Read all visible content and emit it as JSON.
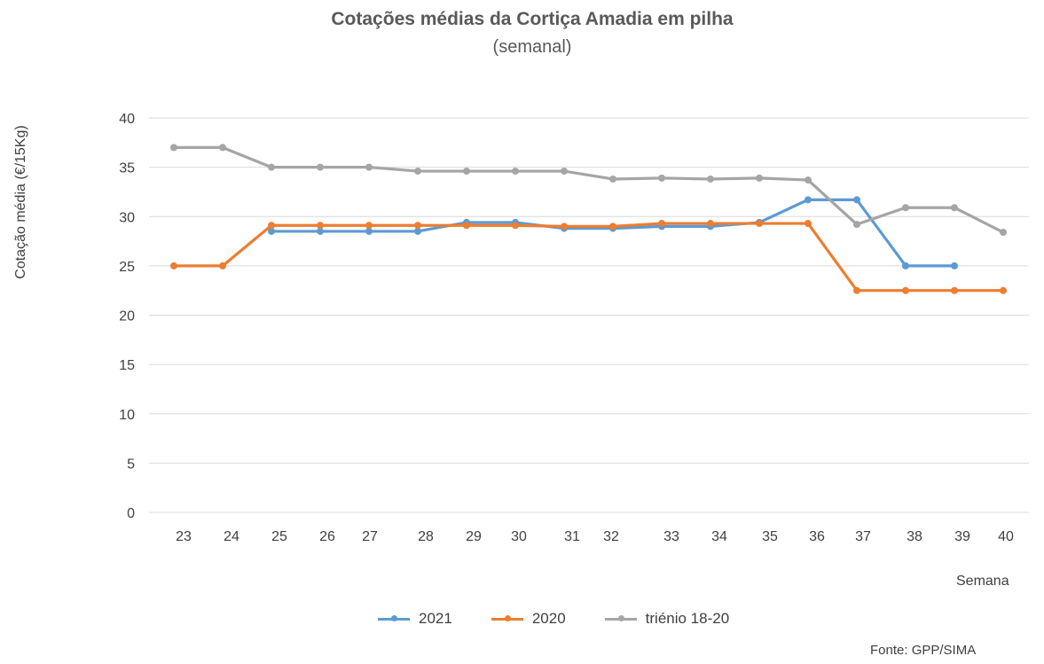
{
  "chart_data": {
    "type": "line",
    "title": "Cotações médias da Cortiça Amadia em pilha",
    "subtitle": "(semanal)",
    "xlabel": "Semana",
    "ylabel": "Cotação média (€/15Kg)",
    "source": "Fonte: GPP/SIMA",
    "ylim": [
      0,
      40
    ],
    "yticks": [
      0,
      5,
      10,
      15,
      20,
      25,
      30,
      35,
      40
    ],
    "grid": true,
    "legend_position": "bottom",
    "categories": [
      "23",
      "24",
      "25",
      "26",
      "27",
      "28",
      "29",
      "30",
      "31",
      "32",
      "33",
      "34",
      "35",
      "36",
      "37",
      "38",
      "39",
      "40"
    ],
    "series": [
      {
        "name": "2021",
        "color": "#5B9BD5",
        "values": [
          null,
          null,
          28.5,
          28.5,
          28.5,
          28.5,
          29.4,
          29.4,
          28.8,
          28.8,
          29.0,
          29.0,
          29.4,
          31.7,
          31.7,
          25.0,
          25.0,
          null
        ]
      },
      {
        "name": "2020",
        "color": "#ED7D31",
        "values": [
          25.0,
          25.0,
          29.1,
          29.1,
          29.1,
          29.1,
          29.1,
          29.1,
          29.0,
          29.0,
          29.3,
          29.3,
          29.3,
          29.3,
          22.5,
          22.5,
          22.5,
          22.5
        ]
      },
      {
        "name": "triénio 18-20",
        "color": "#A5A5A5",
        "values": [
          37.0,
          37.0,
          35.0,
          35.0,
          35.0,
          34.6,
          34.6,
          34.6,
          34.6,
          33.8,
          33.9,
          33.8,
          33.9,
          33.7,
          29.2,
          30.9,
          30.9,
          28.4
        ]
      }
    ]
  }
}
